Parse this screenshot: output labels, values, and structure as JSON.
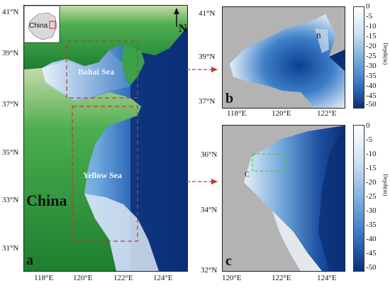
{
  "map_a": {
    "panel_letter": "a",
    "sea_labels": [
      "Bohai Sea",
      "Yellow Sea"
    ],
    "country_label": "China",
    "inset_label": "China",
    "north_arrow": "N",
    "lat_ticks": [
      "41°N",
      "39°N",
      "37°N",
      "35°N",
      "33°N",
      "31°N"
    ],
    "lon_ticks": [
      "118°E",
      "120°E",
      "122°E",
      "124°E"
    ]
  },
  "map_b": {
    "panel_letter": "b",
    "site_label": "B",
    "lat_ticks": [
      "41°N",
      "39°N",
      "37°N"
    ],
    "lon_ticks": [
      "118°E",
      "120°E",
      "122°E"
    ]
  },
  "map_c": {
    "panel_letter": "c",
    "site_label": "C",
    "lat_ticks": [
      "36°N",
      "34°N",
      "32°N"
    ],
    "lon_ticks": [
      "120°E",
      "122°E",
      "124°E"
    ]
  },
  "colorbar": {
    "title": "Depth(m)",
    "ticks": [
      "0",
      "-5",
      "-10",
      "-15",
      "-20",
      "-25",
      "-30",
      "-35",
      "-40",
      "-45",
      "-50"
    ]
  },
  "colors": {
    "land": "#2e9a3c",
    "deep_water": "#0a3a8c",
    "shallow_water": "#dbe9f7",
    "no_data": "#b3b3b3",
    "frame_line": "#c0392b"
  }
}
